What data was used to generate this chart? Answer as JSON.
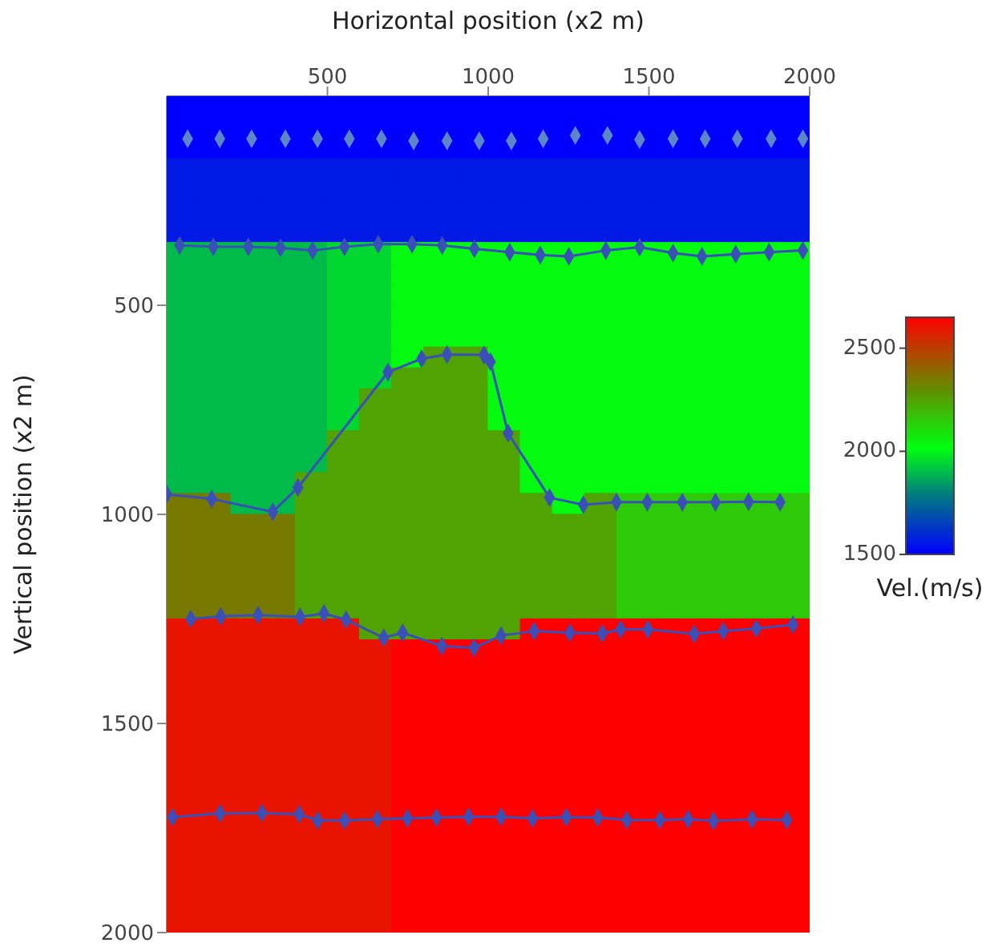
{
  "chart_data": {
    "type": "heatmap",
    "xlabel": "Horizontal position (x2 m)",
    "ylabel": "Vertical position (x2 m)",
    "clabel": "Vel.(m/s)",
    "xlim": [
      0,
      2000
    ],
    "xticks": [
      500,
      1000,
      1500,
      2000
    ],
    "ylim": [
      2000,
      0
    ],
    "yticks": [
      500,
      1000,
      1500,
      2000
    ],
    "clim": [
      1500,
      2650
    ],
    "cticks": [
      1500,
      2000,
      2500
    ],
    "x": [
      50,
      150,
      250,
      350,
      450,
      550,
      650,
      750,
      850,
      950,
      1050,
      1150,
      1250,
      1350,
      1450,
      1550,
      1650,
      1750,
      1850,
      1950
    ],
    "y": [
      25,
      75,
      125,
      175,
      225,
      275,
      325,
      375,
      425,
      475,
      525,
      575,
      625,
      675,
      725,
      775,
      825,
      875,
      925,
      975,
      1025,
      1075,
      1125,
      1175,
      1225,
      1275,
      1325,
      1375,
      1425,
      1475,
      1525,
      1575,
      1625,
      1675,
      1725,
      1775,
      1825,
      1875,
      1925,
      1975
    ],
    "cells": [
      [
        1500,
        1500,
        1500,
        1500,
        1500,
        1500,
        1500,
        1500,
        1500,
        1500,
        1500,
        1500,
        1500,
        1500,
        1500,
        1500,
        1500,
        1500,
        1500,
        1500
      ],
      [
        1500,
        1500,
        1500,
        1500,
        1500,
        1500,
        1500,
        1500,
        1500,
        1500,
        1500,
        1500,
        1500,
        1500,
        1500,
        1500,
        1500,
        1500,
        1500,
        1500
      ],
      [
        1500,
        1500,
        1500,
        1500,
        1500,
        1500,
        1500,
        1500,
        1500,
        1500,
        1500,
        1500,
        1500,
        1500,
        1500,
        1500,
        1500,
        1500,
        1500,
        1500
      ],
      [
        1560,
        1560,
        1560,
        1560,
        1560,
        1560,
        1560,
        1560,
        1560,
        1560,
        1560,
        1560,
        1560,
        1560,
        1560,
        1560,
        1560,
        1560,
        1560,
        1560
      ],
      [
        1560,
        1560,
        1560,
        1560,
        1560,
        1560,
        1560,
        1560,
        1560,
        1560,
        1560,
        1560,
        1560,
        1560,
        1560,
        1560,
        1560,
        1560,
        1560,
        1560
      ],
      [
        1560,
        1560,
        1560,
        1560,
        1560,
        1560,
        1560,
        1560,
        1560,
        1560,
        1560,
        1560,
        1560,
        1560,
        1560,
        1560,
        1560,
        1560,
        1560,
        1560
      ],
      [
        1560,
        1560,
        1560,
        1560,
        1560,
        1560,
        1560,
        1560,
        1560,
        1560,
        1560,
        1560,
        1560,
        1560,
        1560,
        1560,
        1560,
        1560,
        1560,
        1560
      ],
      [
        1900,
        1900,
        1900,
        1900,
        1900,
        1950,
        1950,
        2030,
        2030,
        2030,
        2030,
        2030,
        2030,
        2030,
        2030,
        2030,
        2030,
        2030,
        2030,
        2030
      ],
      [
        1900,
        1900,
        1900,
        1900,
        1900,
        1950,
        1950,
        2030,
        2030,
        2030,
        2030,
        2030,
        2030,
        2030,
        2030,
        2030,
        2030,
        2030,
        2030,
        2030
      ],
      [
        1900,
        1900,
        1900,
        1900,
        1900,
        1950,
        1950,
        2030,
        2030,
        2030,
        2030,
        2030,
        2030,
        2030,
        2030,
        2030,
        2030,
        2030,
        2030,
        2030
      ],
      [
        1900,
        1900,
        1900,
        1900,
        1900,
        1950,
        1950,
        2030,
        2030,
        2030,
        2030,
        2030,
        2030,
        2030,
        2030,
        2030,
        2030,
        2030,
        2030,
        2030
      ],
      [
        1900,
        1900,
        1900,
        1900,
        1900,
        1950,
        1950,
        2030,
        2030,
        2030,
        2030,
        2030,
        2030,
        2030,
        2030,
        2030,
        2030,
        2030,
        2030,
        2030
      ],
      [
        1900,
        1900,
        1900,
        1900,
        1900,
        1950,
        1950,
        2030,
        2250,
        2250,
        2030,
        2030,
        2030,
        2030,
        2030,
        2030,
        2030,
        2030,
        2030,
        2030
      ],
      [
        1900,
        1900,
        1900,
        1900,
        1900,
        1950,
        1950,
        2250,
        2250,
        2250,
        2030,
        2030,
        2030,
        2030,
        2030,
        2030,
        2030,
        2030,
        2030,
        2030
      ],
      [
        1900,
        1900,
        1900,
        1900,
        1900,
        1950,
        2250,
        2250,
        2250,
        2250,
        2030,
        2030,
        2030,
        2030,
        2030,
        2030,
        2030,
        2030,
        2030,
        2030
      ],
      [
        1900,
        1900,
        1900,
        1900,
        1900,
        1950,
        2250,
        2250,
        2250,
        2250,
        2030,
        2030,
        2030,
        2030,
        2030,
        2030,
        2030,
        2030,
        2030,
        2030
      ],
      [
        1900,
        1900,
        1900,
        1900,
        1900,
        2250,
        2250,
        2250,
        2250,
        2250,
        2250,
        2030,
        2030,
        2030,
        2030,
        2030,
        2030,
        2030,
        2030,
        2030
      ],
      [
        1900,
        1900,
        1900,
        1900,
        1900,
        2250,
        2250,
        2250,
        2250,
        2250,
        2250,
        2030,
        2030,
        2030,
        2030,
        2030,
        2030,
        2030,
        2030,
        2030
      ],
      [
        1900,
        1900,
        1900,
        1900,
        2250,
        2250,
        2250,
        2250,
        2250,
        2250,
        2250,
        2030,
        2030,
        2030,
        2030,
        2030,
        2030,
        2030,
        2030,
        2030
      ],
      [
        2350,
        2350,
        1900,
        1900,
        2250,
        2250,
        2250,
        2250,
        2250,
        2250,
        2250,
        2250,
        2030,
        2250,
        2150,
        2150,
        2150,
        2150,
        2150,
        2150
      ],
      [
        2350,
        2350,
        2350,
        2350,
        2250,
        2250,
        2250,
        2250,
        2250,
        2250,
        2250,
        2250,
        2250,
        2250,
        2150,
        2150,
        2150,
        2150,
        2150,
        2150
      ],
      [
        2350,
        2350,
        2350,
        2350,
        2250,
        2250,
        2250,
        2250,
        2250,
        2250,
        2250,
        2250,
        2250,
        2250,
        2150,
        2150,
        2150,
        2150,
        2150,
        2150
      ],
      [
        2350,
        2350,
        2350,
        2350,
        2250,
        2250,
        2250,
        2250,
        2250,
        2250,
        2250,
        2250,
        2250,
        2250,
        2150,
        2150,
        2150,
        2150,
        2150,
        2150
      ],
      [
        2350,
        2350,
        2350,
        2350,
        2250,
        2250,
        2250,
        2250,
        2250,
        2250,
        2250,
        2250,
        2250,
        2250,
        2150,
        2150,
        2150,
        2150,
        2150,
        2150
      ],
      [
        2350,
        2350,
        2350,
        2350,
        2250,
        2250,
        2250,
        2250,
        2250,
        2250,
        2250,
        2250,
        2250,
        2250,
        2150,
        2150,
        2150,
        2150,
        2150,
        2150
      ],
      [
        2600,
        2600,
        2600,
        2600,
        2600,
        2600,
        2250,
        2250,
        2250,
        2250,
        2250,
        2650,
        2650,
        2650,
        2650,
        2650,
        2650,
        2650,
        2650,
        2650
      ],
      [
        2600,
        2600,
        2600,
        2600,
        2600,
        2600,
        2600,
        2650,
        2650,
        2650,
        2650,
        2650,
        2650,
        2650,
        2650,
        2650,
        2650,
        2650,
        2650,
        2650
      ],
      [
        2600,
        2600,
        2600,
        2600,
        2600,
        2600,
        2600,
        2650,
        2650,
        2650,
        2650,
        2650,
        2650,
        2650,
        2650,
        2650,
        2650,
        2650,
        2650,
        2650
      ],
      [
        2600,
        2600,
        2600,
        2600,
        2600,
        2600,
        2600,
        2650,
        2650,
        2650,
        2650,
        2650,
        2650,
        2650,
        2650,
        2650,
        2650,
        2650,
        2650,
        2650
      ],
      [
        2600,
        2600,
        2600,
        2600,
        2600,
        2600,
        2600,
        2650,
        2650,
        2650,
        2650,
        2650,
        2650,
        2650,
        2650,
        2650,
        2650,
        2650,
        2650,
        2650
      ],
      [
        2600,
        2600,
        2600,
        2600,
        2600,
        2600,
        2600,
        2650,
        2650,
        2650,
        2650,
        2650,
        2650,
        2650,
        2650,
        2650,
        2650,
        2650,
        2650,
        2650
      ],
      [
        2600,
        2600,
        2600,
        2600,
        2600,
        2600,
        2600,
        2650,
        2650,
        2650,
        2650,
        2650,
        2650,
        2650,
        2650,
        2650,
        2650,
        2650,
        2650,
        2650
      ],
      [
        2600,
        2600,
        2600,
        2600,
        2600,
        2600,
        2600,
        2650,
        2650,
        2650,
        2650,
        2650,
        2650,
        2650,
        2650,
        2650,
        2650,
        2650,
        2650,
        2650
      ],
      [
        2600,
        2600,
        2600,
        2600,
        2600,
        2600,
        2600,
        2650,
        2650,
        2650,
        2650,
        2650,
        2650,
        2650,
        2650,
        2650,
        2650,
        2650,
        2650,
        2650
      ],
      [
        2600,
        2600,
        2600,
        2600,
        2600,
        2600,
        2600,
        2650,
        2650,
        2650,
        2650,
        2650,
        2650,
        2650,
        2650,
        2650,
        2650,
        2650,
        2650,
        2650
      ],
      [
        2600,
        2600,
        2600,
        2600,
        2600,
        2600,
        2600,
        2650,
        2650,
        2650,
        2650,
        2650,
        2650,
        2650,
        2650,
        2650,
        2650,
        2650,
        2650,
        2650
      ],
      [
        2600,
        2600,
        2600,
        2600,
        2600,
        2600,
        2600,
        2650,
        2650,
        2650,
        2650,
        2650,
        2650,
        2650,
        2650,
        2650,
        2650,
        2650,
        2650,
        2650
      ],
      [
        2600,
        2600,
        2600,
        2600,
        2600,
        2600,
        2600,
        2650,
        2650,
        2650,
        2650,
        2650,
        2650,
        2650,
        2650,
        2650,
        2650,
        2650,
        2650,
        2650
      ],
      [
        2600,
        2600,
        2600,
        2600,
        2600,
        2600,
        2600,
        2650,
        2650,
        2650,
        2650,
        2650,
        2650,
        2650,
        2650,
        2650,
        2650,
        2650,
        2650,
        2650
      ],
      [
        2600,
        2600,
        2600,
        2600,
        2600,
        2600,
        2600,
        2650,
        2650,
        2650,
        2650,
        2650,
        2650,
        2650,
        2650,
        2650,
        2650,
        2650,
        2650,
        2650
      ]
    ],
    "marker": "diamond",
    "series": [
      {
        "type": "scatter",
        "color": "#5b86c8",
        "x": [
          65,
          165,
          264,
          369,
          469,
          568,
          668,
          768,
          872,
          972,
          1072,
          1171,
          1271,
          1371,
          1471,
          1575,
          1675,
          1775,
          1880,
          1979
        ],
        "values": [
          102,
          102,
          102,
          102,
          102,
          102,
          102,
          107,
          107,
          107,
          107,
          102,
          94,
          94,
          104,
          102,
          102,
          102,
          102,
          102
        ]
      },
      {
        "type": "line",
        "color": "#3a4fb8",
        "x": [
          40,
          145,
          254,
          354,
          454,
          553,
          658,
          763,
          857,
          957,
          1067,
          1162,
          1251,
          1366,
          1471,
          1575,
          1665,
          1770,
          1874,
          1979
        ],
        "values": [
          357,
          360,
          360,
          363,
          369,
          360,
          354,
          354,
          357,
          365,
          373,
          380,
          383,
          369,
          361,
          375,
          383,
          378,
          373,
          369
        ]
      },
      {
        "type": "line",
        "color": "#3a4fb8",
        "x": [
          0,
          140,
          330,
          408,
          688,
          793,
          872,
          987,
          1007,
          1062,
          1191,
          1296,
          1399,
          1495,
          1604,
          1707,
          1810,
          1908
        ],
        "values": [
          952,
          963,
          994,
          936,
          660,
          628,
          618,
          619,
          635,
          806,
          960,
          977,
          971,
          971,
          971,
          971,
          970,
          971
        ]
      },
      {
        "type": "line",
        "color": "#3a4fb8",
        "x": [
          75,
          168,
          284,
          415,
          489,
          558,
          675,
          734,
          856,
          956,
          1040,
          1143,
          1254,
          1355,
          1412,
          1497,
          1641,
          1731,
          1834,
          1948
        ],
        "values": [
          1250,
          1244,
          1241,
          1245,
          1237,
          1252,
          1295,
          1283,
          1315,
          1319,
          1290,
          1279,
          1283,
          1285,
          1275,
          1275,
          1286,
          1279,
          1273,
          1264
        ]
      },
      {
        "type": "line",
        "color": "#3a4fb8",
        "x": [
          18,
          166,
          296,
          412,
          470,
          553,
          655,
          749,
          839,
          939,
          1040,
          1138,
          1243,
          1341,
          1431,
          1534,
          1622,
          1701,
          1821,
          1929
        ],
        "values": [
          1724,
          1715,
          1714,
          1717,
          1732,
          1732,
          1729,
          1727,
          1725,
          1723,
          1723,
          1727,
          1724,
          1725,
          1731,
          1731,
          1729,
          1733,
          1729,
          1731
        ]
      }
    ]
  }
}
